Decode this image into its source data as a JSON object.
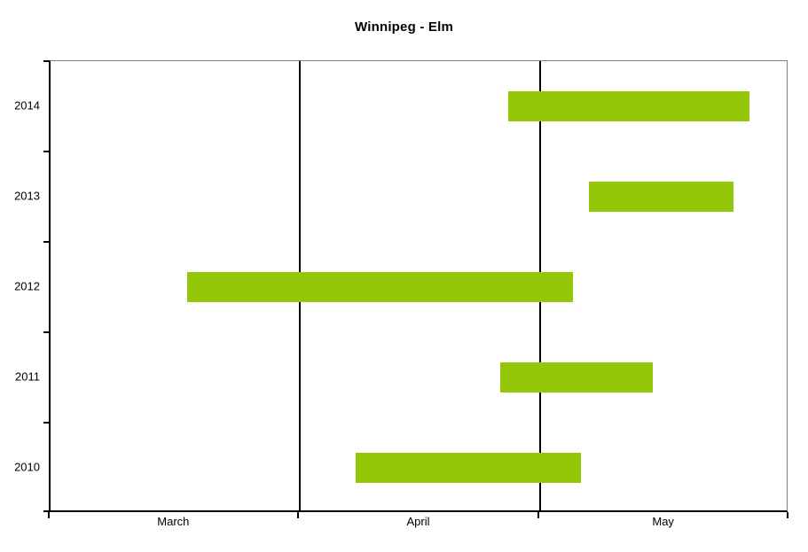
{
  "title": "Winnipeg - Elm",
  "colors": {
    "bar": "#94C707",
    "axis": "#000000",
    "plot_border_grey": "#808080",
    "background": "#FFFFFF",
    "text": "#000000"
  },
  "chart_data": {
    "type": "bar",
    "subtype": "horizontal-date-range-gantt",
    "title": "Winnipeg - Elm",
    "categories": [
      "2014",
      "2013",
      "2012",
      "2011",
      "2010"
    ],
    "series": [
      {
        "name": "date-range",
        "color": "#94C707",
        "ranges": [
          {
            "category": "2014",
            "start": "Apr 27",
            "end": "May 27",
            "start_days": 57,
            "end_days": 87
          },
          {
            "category": "2013",
            "start": "May 7",
            "end": "May 25",
            "start_days": 67,
            "end_days": 85
          },
          {
            "category": "2012",
            "start": "Mar 18",
            "end": "May 5",
            "start_days": 17,
            "end_days": 65
          },
          {
            "category": "2011",
            "start": "Apr 26",
            "end": "May 15",
            "start_days": 56,
            "end_days": 75
          },
          {
            "category": "2010",
            "start": "Apr 8",
            "end": "May 6",
            "start_days": 38,
            "end_days": 66
          }
        ]
      }
    ],
    "xlabel": "",
    "ylabel": "",
    "x_axis": {
      "unit": "days since March 1",
      "range": [
        0,
        92
      ],
      "month_ticks": [
        {
          "label": "March",
          "start_days": 0,
          "end_days": 31
        },
        {
          "label": "April",
          "start_days": 31,
          "end_days": 61
        },
        {
          "label": "May",
          "start_days": 61,
          "end_days": 92
        }
      ],
      "gridlines_days": [
        31,
        61
      ],
      "edge_ticks_days": [
        0,
        31,
        61,
        92
      ]
    },
    "grid": "vertical-only",
    "legend": "none"
  }
}
